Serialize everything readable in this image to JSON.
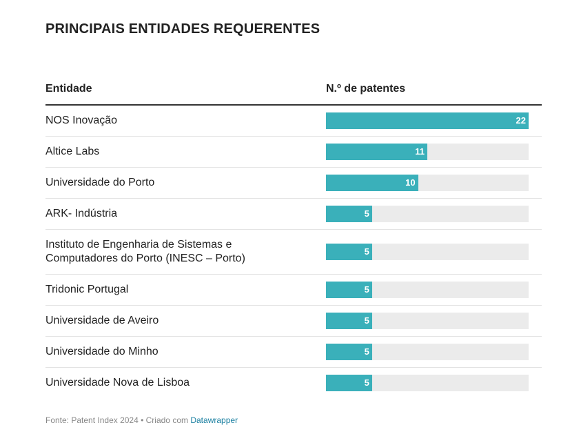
{
  "chart_data": {
    "type": "bar",
    "orientation": "horizontal",
    "title": "PRINCIPAIS ENTIDADES REQUERENTES",
    "column_headers": [
      "Entidade",
      "N.º de patentes"
    ],
    "categories": [
      "NOS Inovação",
      "Altice Labs",
      "Universidade do Porto",
      "ARK- Indústria",
      "Instituto de Engenharia de Sistemas e Computadores do Porto (INESC – Porto)",
      "Tridonic Portugal",
      "Universidade de Aveiro",
      "Universidade do Minho",
      "Universidade Nova de Lisboa"
    ],
    "values": [
      22,
      11,
      10,
      5,
      5,
      5,
      5,
      5,
      5
    ],
    "color": "#3ab0ba",
    "xlim": [
      0,
      22
    ]
  },
  "footer": {
    "text": "Fonte: Patent Index 2024 • Criado com",
    "link": "Datawrapper"
  }
}
